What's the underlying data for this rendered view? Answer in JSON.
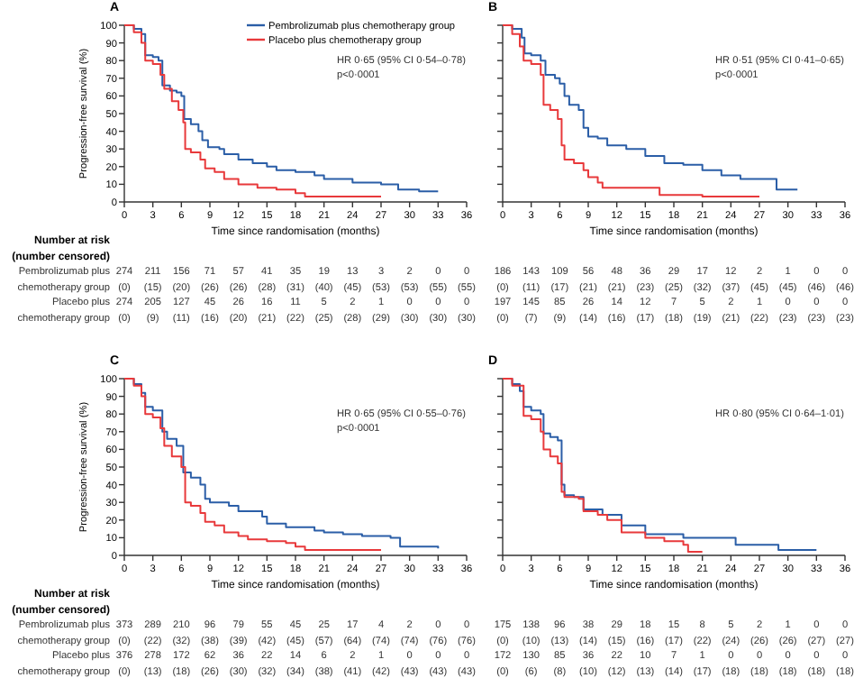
{
  "chart_data": [
    {
      "type": "step",
      "title": "A",
      "xlabel": "Time since randomisation (months)",
      "ylabel": "Progression-free survival (%)",
      "xlim": [
        0,
        36
      ],
      "xticks": [
        0,
        3,
        6,
        9,
        12,
        15,
        18,
        21,
        24,
        27,
        30,
        33,
        36
      ],
      "ylim": [
        0,
        100
      ],
      "yticks": [
        0,
        10,
        20,
        30,
        40,
        50,
        60,
        70,
        80,
        90,
        100
      ],
      "legend": "top right",
      "series": [
        {
          "name": "Pembrolizumab plus chemotherapy group",
          "color": "#2b5ea7",
          "x": [
            0,
            1,
            1.8,
            2.2,
            3,
            3.6,
            4,
            4.8,
            5.5,
            6,
            6.3,
            7,
            7.8,
            8.2,
            8.8,
            10,
            10.5,
            12,
            13.5,
            15,
            16,
            18,
            20,
            21,
            24,
            27,
            28.8,
            31,
            33
          ],
          "values": [
            100,
            98,
            95,
            83,
            82,
            80,
            66,
            63,
            62,
            60,
            47,
            44,
            40,
            35,
            31,
            30,
            27,
            24,
            22,
            20,
            18,
            17,
            15,
            13,
            11,
            10,
            7,
            6,
            6
          ]
        },
        {
          "name": "Placebo plus chemotherapy group",
          "color": "#e8393b",
          "x": [
            0,
            1,
            1.8,
            2.2,
            3,
            3.8,
            4.2,
            5,
            5.7,
            6.2,
            6.4,
            7,
            8,
            8.5,
            9.5,
            10.5,
            12,
            14,
            16,
            18,
            19,
            27
          ],
          "values": [
            100,
            96,
            90,
            80,
            78,
            72,
            64,
            57,
            52,
            45,
            30,
            28,
            24,
            19,
            17,
            13,
            10,
            8,
            7,
            5,
            3,
            3
          ]
        }
      ],
      "annotations": [
        "HR 0·65 (95% CI 0·54–0·78)",
        "p<0·0001",
        "Number at risk",
        "(number censored)",
        "Pembrolizumab plus",
        "274 211 156 71 57 41 35 19 13 3 2 0 0",
        "chemotherapy group",
        "(0) (15) (20) (26) (26) (28) (31) (40) (45) (53) (53) (55) (55)",
        "Placebo plus",
        "274 205 127 45 26 16 11 5 2 1 0 0 0",
        "chemotherapy group",
        "(0) (9) (11) (16) (20) (21) (22) (25) (28) (29) (30) (30) (30)"
      ]
    },
    {
      "type": "step",
      "title": "B",
      "xlabel": "Time since randomisation (months)",
      "xlim": [
        0,
        36
      ],
      "xticks": [
        0,
        3,
        6,
        9,
        12,
        15,
        18,
        21,
        24,
        27,
        30,
        33,
        36
      ],
      "ylim": [
        0,
        100
      ],
      "yticks": [
        0,
        10,
        20,
        30,
        40,
        50,
        60,
        70,
        80,
        90,
        100
      ],
      "tick_labels": "x",
      "series": [
        {
          "color": "#2b5ea7",
          "x": [
            0,
            1,
            2,
            2.3,
            3,
            4,
            4.5,
            5.5,
            6,
            6.5,
            7,
            8,
            8.5,
            9,
            10,
            11,
            13,
            15,
            17,
            19,
            21,
            23,
            25,
            28.8,
            31
          ],
          "values": [
            100,
            98,
            93,
            84,
            83,
            80,
            72,
            70,
            67,
            60,
            55,
            52,
            42,
            37,
            36,
            32,
            30,
            26,
            22,
            21,
            18,
            15,
            13,
            7,
            7
          ]
        },
        {
          "color": "#e8393b",
          "x": [
            0,
            1,
            1.8,
            2.2,
            3,
            4,
            4.3,
            5,
            5.8,
            6.2,
            6.5,
            7.5,
            8.5,
            9,
            10,
            10.5,
            16.5,
            21,
            27
          ],
          "values": [
            100,
            95,
            88,
            80,
            78,
            72,
            55,
            52,
            47,
            32,
            24,
            22,
            18,
            14,
            11,
            8,
            4,
            3,
            3
          ]
        }
      ],
      "annotations": [
        "HR 0·51 (95% CI 0·41–0·65)",
        "p<0·0001",
        "186 143 109 56 48 36 29 17 12 2 1 0 0",
        "(0) (11) (17) (21) (21) (23) (25) (32) (37) (45) (45) (46) (46)",
        "197 145 85 26 14 12 7 5 2 1 0 0 0",
        "(0) (7) (9) (14) (16) (17) (18) (19) (21) (22) (23) (23) (23)"
      ]
    },
    {
      "type": "step",
      "title": "C",
      "xlabel": "Time since randomisation (months)",
      "ylabel": "Progression-free survival (%)",
      "xlim": [
        0,
        36
      ],
      "xticks": [
        0,
        3,
        6,
        9,
        12,
        15,
        18,
        21,
        24,
        27,
        30,
        33,
        36
      ],
      "ylim": [
        0,
        100
      ],
      "yticks": [
        0,
        10,
        20,
        30,
        40,
        50,
        60,
        70,
        80,
        90,
        100
      ],
      "series": [
        {
          "color": "#2b5ea7",
          "x": [
            0,
            1,
            1.8,
            2.2,
            3,
            4,
            4.5,
            5.5,
            6.2,
            7,
            8,
            8.5,
            9,
            11,
            12,
            14.5,
            15,
            17,
            20,
            21,
            23,
            25,
            28,
            29,
            33
          ],
          "values": [
            100,
            97,
            92,
            84,
            82,
            70,
            66,
            62,
            47,
            44,
            40,
            32,
            30,
            28,
            25,
            22,
            18,
            16,
            14,
            13,
            12,
            11,
            10,
            5,
            4
          ]
        },
        {
          "color": "#e8393b",
          "x": [
            0,
            1,
            1.8,
            2.2,
            3,
            3.8,
            4.2,
            5,
            6,
            6.4,
            7,
            8,
            8.5,
            9.5,
            10.5,
            12,
            13,
            15,
            17,
            18,
            19,
            27
          ],
          "values": [
            100,
            96,
            90,
            80,
            78,
            72,
            62,
            56,
            50,
            30,
            28,
            24,
            19,
            17,
            13,
            11,
            9,
            8,
            7,
            5,
            3,
            3
          ]
        }
      ],
      "annotations": [
        "HR 0·65 (95% CI 0·55–0·76)",
        "p<0·0001",
        "Number at risk",
        "(number censored)",
        "Pembrolizumab plus",
        "373 289 210 96 79 55 45 25 17 4 2 0 0",
        "chemotherapy group",
        "(0) (22) (32) (38) (39) (42) (45) (57) (64) (74) (74) (76) (76)",
        "Placebo plus",
        "376 278 172 62 36 22 14 6 2 1 0 0 0",
        "chemotherapy group",
        "(0) (13) (18) (26) (30) (32) (34) (38) (41) (42) (43) (43) (43)"
      ]
    },
    {
      "type": "step",
      "title": "D",
      "xlabel": "Time since randomisation (months)",
      "xlim": [
        0,
        36
      ],
      "xticks": [
        0,
        3,
        6,
        9,
        12,
        15,
        18,
        21,
        24,
        27,
        30,
        33,
        36
      ],
      "ylim": [
        0,
        100
      ],
      "yticks": [
        0,
        10,
        20,
        30,
        40,
        50,
        60,
        70,
        80,
        90,
        100
      ],
      "tick_labels": "x",
      "series": [
        {
          "color": "#2b5ea7",
          "x": [
            0,
            1,
            1.8,
            2.2,
            3,
            4,
            4.3,
            5,
            5.8,
            6.2,
            6.5,
            7.5,
            8.5,
            10.5,
            12.5,
            15,
            19,
            24.5,
            29,
            33
          ],
          "values": [
            100,
            97,
            93,
            84,
            82,
            80,
            69,
            67,
            65,
            40,
            34,
            33,
            26,
            23,
            17,
            12,
            10,
            6,
            3,
            3
          ]
        },
        {
          "color": "#e8393b",
          "x": [
            0,
            1,
            2.2,
            3,
            4,
            4.3,
            5,
            5.8,
            6.2,
            6.5,
            8,
            8.5,
            10,
            11,
            12.5,
            15,
            17,
            19,
            19.5,
            21
          ],
          "values": [
            100,
            96,
            79,
            77,
            70,
            60,
            56,
            52,
            36,
            33,
            32,
            25,
            23,
            20,
            13,
            10,
            8,
            6,
            2,
            2
          ]
        }
      ],
      "annotations": [
        "HR 0·80 (95% CI 0·64–1·01)",
        "175 138 96 38 29 18 15 8 5 2 1 0 0",
        "(0) (10) (13) (14) (15) (16) (17) (22) (24) (26) (26) (27) (27)",
        "172 130 85 36 22 10 7 1 0 0 0 0 0",
        "(0) (6) (8) (10) (12) (13) (14) (17) (18) (18) (18) (18) (18)"
      ]
    }
  ]
}
